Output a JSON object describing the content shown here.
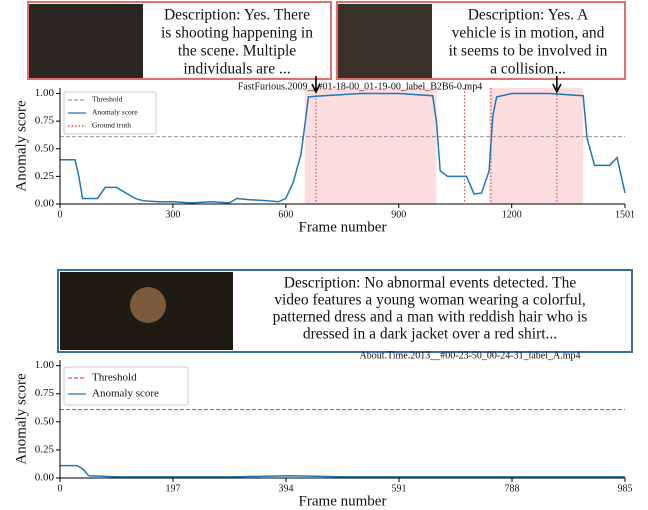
{
  "chart_data": [
    {
      "type": "line",
      "title": "FastFurious.2009__#01-18-00_01-19-00_label_B2B6-0.mp4",
      "x_label": "Frame number",
      "y_label": "Anomaly score",
      "descriptions": [
        [
          "Description: Yes. There",
          "is shooting happening in",
          "the scene. Multiple",
          "individuals are ..."
        ],
        [
          "Description: Yes. A",
          "vehicle is in motion, and",
          "it seems to be involved in",
          "a collision..."
        ]
      ],
      "xlim": [
        0,
        1501
      ],
      "xticks": [
        0,
        300,
        600,
        900,
        1200,
        1501
      ],
      "ylim": [
        0,
        1.05
      ],
      "yticks": [
        {
          "value": 0,
          "label": "0.00"
        },
        {
          "value": 0.25,
          "label": "0.25"
        },
        {
          "value": 0.5,
          "label": "0.50"
        },
        {
          "value": 0.75,
          "label": "0.75"
        },
        {
          "value": 1,
          "label": "1.00"
        }
      ],
      "legend": "upper left",
      "threshold": {
        "name": "Threshold",
        "value": 0.61,
        "color": "#999999"
      },
      "ground_truth": {
        "name": "Ground truth",
        "color": "#d62728",
        "x": [
          680,
          1075,
          1145,
          1320
        ]
      },
      "spans": [
        [
          650,
          1000
        ],
        [
          1140,
          1390
        ]
      ],
      "span_color": "#fcdde0",
      "pointers": [
        680,
        1320
      ],
      "series": [
        {
          "name": "Anomaly score",
          "color": "#1f77b4",
          "x": [
            0,
            40,
            50,
            60,
            100,
            120,
            150,
            200,
            220,
            260,
            300,
            350,
            400,
            450,
            470,
            500,
            550,
            580,
            600,
            620,
            640,
            650,
            660,
            700,
            800,
            900,
            990,
            1000,
            1010,
            1030,
            1080,
            1100,
            1120,
            1140,
            1150,
            1160,
            1200,
            1300,
            1390,
            1400,
            1420,
            1460,
            1480,
            1501
          ],
          "values": [
            0.4,
            0.4,
            0.25,
            0.05,
            0.05,
            0.15,
            0.15,
            0.05,
            0.03,
            0.02,
            0.02,
            0.01,
            0.02,
            0.01,
            0.05,
            0.04,
            0.03,
            0.02,
            0.05,
            0.2,
            0.45,
            0.7,
            0.97,
            0.98,
            1.0,
            1.0,
            0.98,
            0.75,
            0.3,
            0.25,
            0.25,
            0.09,
            0.1,
            0.3,
            0.8,
            0.97,
            1.0,
            1.0,
            0.98,
            0.6,
            0.35,
            0.35,
            0.42,
            0.1
          ]
        }
      ]
    },
    {
      "type": "line",
      "title": "About.Time.2013__#00-23-50_00-24-31_label_A.mp4",
      "x_label": "Frame number",
      "y_label": "Anomaly score",
      "descriptions": [
        [
          "Description: No abnormal events detected. The",
          "video features a young woman wearing a colorful,",
          "patterned dress and a man with reddish hair who is",
          "dressed in a dark jacket over a red shirt..."
        ]
      ],
      "xlim": [
        0,
        985
      ],
      "xticks": [
        0,
        197,
        394,
        591,
        788,
        985
      ],
      "ylim": [
        0,
        1.05
      ],
      "yticks": [
        {
          "value": 0,
          "label": "0.00"
        },
        {
          "value": 0.25,
          "label": "0.25"
        },
        {
          "value": 0.5,
          "label": "0.50"
        },
        {
          "value": 0.75,
          "label": "0.75"
        },
        {
          "value": 1,
          "label": "1.00"
        }
      ],
      "legend": "upper left",
      "threshold": {
        "name": "Threshold",
        "value": 0.61,
        "color": "#e8434f"
      },
      "series": [
        {
          "name": "Anomaly score",
          "color": "#1f77b4",
          "x": [
            0,
            30,
            40,
            50,
            100,
            200,
            300,
            400,
            500,
            600,
            700,
            800,
            900,
            985
          ],
          "values": [
            0.11,
            0.11,
            0.08,
            0.02,
            0.01,
            0.01,
            0.01,
            0.02,
            0.01,
            0.01,
            0.01,
            0.01,
            0.01,
            0.01
          ]
        }
      ]
    }
  ]
}
